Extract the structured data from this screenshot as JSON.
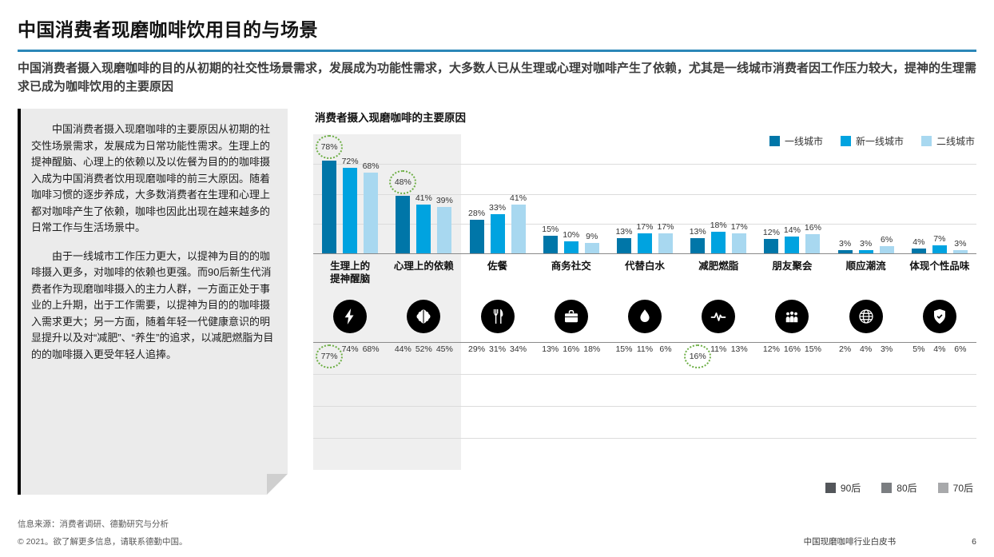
{
  "header": {
    "title": "中国消费者现磨咖啡饮用目的与场景",
    "subtitle": "中国消费者摄入现磨咖啡的目的从初期的社交性场景需求，发展成为功能性需求，大多数人已从生理或心理对咖啡产生了依赖，尤其是一线城市消费者因工作压力较大，提神的生理需求已成为咖啡饮用的主要原因",
    "accent_color": "#2B87B8"
  },
  "callout": {
    "paragraphs": [
      "中国消费者摄入现磨咖啡的主要原因从初期的社交性场景需求，发展成为日常功能性需求。生理上的提神醒脑、心理上的依赖以及以佐餐为目的的咖啡摄入成为中国消费者饮用现磨咖啡的前三大原因。随着咖啡习惯的逐步养成，大多数消费者在生理和心理上都对咖啡产生了依赖，咖啡也因此出现在越来越多的日常工作与生活场景中。",
      "由于一线城市工作压力更大，以提神为目的的咖啡摄入更多，对咖啡的依赖也更强。而90后新生代消费者作为现磨咖啡摄入的主力人群，一方面正处于事业的上升期，出于工作需要，以提神为目的的咖啡摄入需求更大；另一方面，随着年轻一代健康意识的明显提升以及对“减肥”、“养生”的追求，以减肥燃脂为目的的咖啡摄入更受年轻人追捧。"
    ]
  },
  "chart": {
    "title": "消费者摄入现磨咖啡的主要原因"
  },
  "chart_data": [
    {
      "type": "bar",
      "title": "消费者摄入现磨咖啡的主要原因",
      "direction": "up",
      "ylim": [
        0,
        100
      ],
      "unit": "%",
      "legend_position": "top-right",
      "categories": [
        "生理上的\n提神醒脑",
        "心理上的依赖",
        "佐餐",
        "商务社交",
        "代替白水",
        "减肥燃脂",
        "朋友聚会",
        "顺应潮流",
        "体现个性品味"
      ],
      "series": [
        {
          "name": "一线城市",
          "color": "#0076A8",
          "values": [
            78,
            48,
            28,
            15,
            13,
            13,
            12,
            3,
            4
          ]
        },
        {
          "name": "新一线城市",
          "color": "#00A3E0",
          "values": [
            72,
            41,
            33,
            10,
            17,
            18,
            14,
            3,
            7
          ]
        },
        {
          "name": "二线城市",
          "color": "#A8D8F0",
          "values": [
            68,
            39,
            41,
            9,
            17,
            17,
            16,
            6,
            3
          ]
        }
      ]
    },
    {
      "type": "bar",
      "direction": "down",
      "ylim": [
        0,
        100
      ],
      "unit": "%",
      "legend_position": "bottom-right",
      "categories": [
        "生理上的\n提神醒脑",
        "心理上的依赖",
        "佐餐",
        "商务社交",
        "代替白水",
        "减肥燃脂",
        "朋友聚会",
        "顺应潮流",
        "体现个性品味"
      ],
      "series": [
        {
          "name": "90后",
          "color": "#53565A",
          "values": [
            77,
            44,
            29,
            13,
            15,
            16,
            12,
            2,
            5
          ]
        },
        {
          "name": "80后",
          "color": "#7B7E81",
          "values": [
            74,
            52,
            31,
            16,
            11,
            11,
            16,
            4,
            4
          ]
        },
        {
          "name": "70后",
          "color": "#A8A9AB",
          "values": [
            68,
            45,
            34,
            18,
            6,
            13,
            15,
            3,
            6
          ]
        }
      ]
    }
  ],
  "highlights": [
    {
      "chart": 0,
      "category": 0,
      "series": 0
    },
    {
      "chart": 0,
      "category": 1,
      "series": 0
    },
    {
      "chart": 1,
      "category": 0,
      "series": 0
    },
    {
      "chart": 1,
      "category": 5,
      "series": 0
    }
  ],
  "highlight_color": "#6EAF46",
  "category_icons": [
    "lightning-icon",
    "brain-icon",
    "utensils-icon",
    "briefcase-icon",
    "water-drop-icon",
    "pulse-icon",
    "people-icon",
    "globe-icon",
    "shield-icon"
  ],
  "footer": {
    "source": "信息来源：消费者调研、德勤研究与分析",
    "copyright": "© 2021。欲了解更多信息，请联系德勤中国。",
    "doc_title": "中国现磨咖啡行业白皮书",
    "page_number": "6"
  }
}
